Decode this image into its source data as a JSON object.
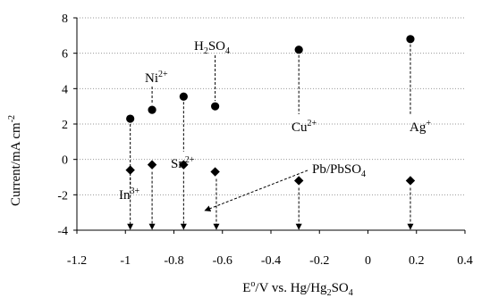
{
  "chart_data": {
    "type": "scatter",
    "title": "",
    "xlabel": {
      "base": "E",
      "sup": "o",
      "rest": "/V vs. Hg/Hg",
      "sub": "2",
      "tail": "SO",
      "sub2": "4"
    },
    "ylabel": {
      "text": "Current/mA cm",
      "sup": "-2"
    },
    "xlim": [
      -1.2,
      0.4
    ],
    "ylim": [
      -4,
      8
    ],
    "xticks": [
      "-1.2",
      "-1",
      "-0.8",
      "-0.6",
      "-0.4",
      "-0.2",
      "0",
      "0.2",
      "0.4"
    ],
    "yticks": [
      "8",
      "6",
      "4",
      "2",
      "0",
      "-2",
      "-4"
    ],
    "grid": {
      "y": true,
      "x": false,
      "style": "dotted"
    },
    "series": [
      {
        "marker": "circle",
        "points": [
          {
            "x": -0.98,
            "y": 2.3
          },
          {
            "x": -0.89,
            "y": 2.8
          },
          {
            "x": -0.76,
            "y": 3.55
          },
          {
            "x": -0.63,
            "y": 3.0
          },
          {
            "x": -0.285,
            "y": 6.2
          },
          {
            "x": 0.175,
            "y": 6.8
          }
        ]
      },
      {
        "marker": "diamond",
        "points": [
          {
            "x": -0.98,
            "y": -0.6
          },
          {
            "x": -0.89,
            "y": -0.3
          },
          {
            "x": -0.76,
            "y": -0.3
          },
          {
            "x": -0.63,
            "y": -0.7
          },
          {
            "x": -0.285,
            "y": -1.2
          },
          {
            "x": 0.175,
            "y": -1.2
          }
        ]
      }
    ],
    "arrows_x": [
      -0.98,
      -0.89,
      -0.76,
      -0.625,
      -0.285,
      0.175
    ],
    "annotations": [
      {
        "base": "In",
        "sup": "3+",
        "x": -0.98
      },
      {
        "base": "Ni",
        "sup": "2+",
        "x": -0.89
      },
      {
        "base": "Sn",
        "sup": "2+",
        "x": -0.76
      },
      {
        "base": "H",
        "sub": "2",
        "mid": "SO",
        "sub2": "4",
        "x": -0.63
      },
      {
        "base": "Cu",
        "sup": "2+",
        "x": -0.285
      },
      {
        "base": "Ag",
        "sup": "+",
        "x": 0.175
      },
      {
        "base": "Pb/PbSO",
        "sub": "4",
        "x": -0.68
      }
    ]
  }
}
